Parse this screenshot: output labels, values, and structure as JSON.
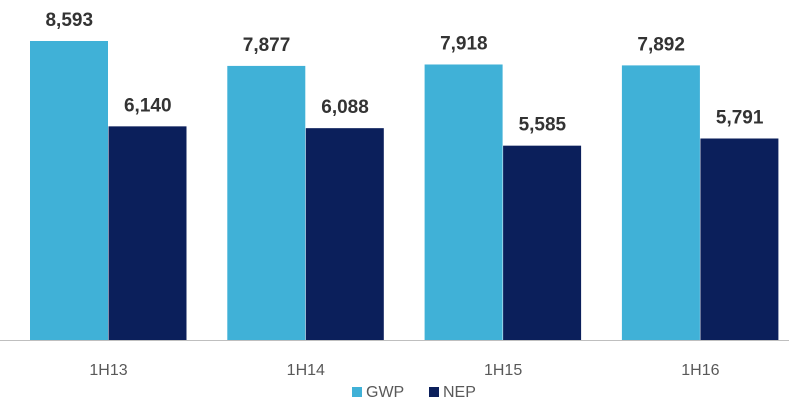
{
  "chart_data": {
    "type": "bar",
    "categories": [
      "1H13",
      "1H14",
      "1H15",
      "1H16"
    ],
    "series": [
      {
        "name": "GWP",
        "color": "#40b1d7",
        "values": [
          8593,
          7877,
          7918,
          7892
        ],
        "value_labels": [
          "8,593",
          "7,877",
          "7,918",
          "7,892"
        ]
      },
      {
        "name": "NEP",
        "color": "#0b1f5b",
        "values": [
          6140,
          6088,
          5585,
          5791
        ],
        "value_labels": [
          "6,140",
          "6,088",
          "5,585",
          "5,791"
        ]
      }
    ],
    "legend": "bottom"
  }
}
